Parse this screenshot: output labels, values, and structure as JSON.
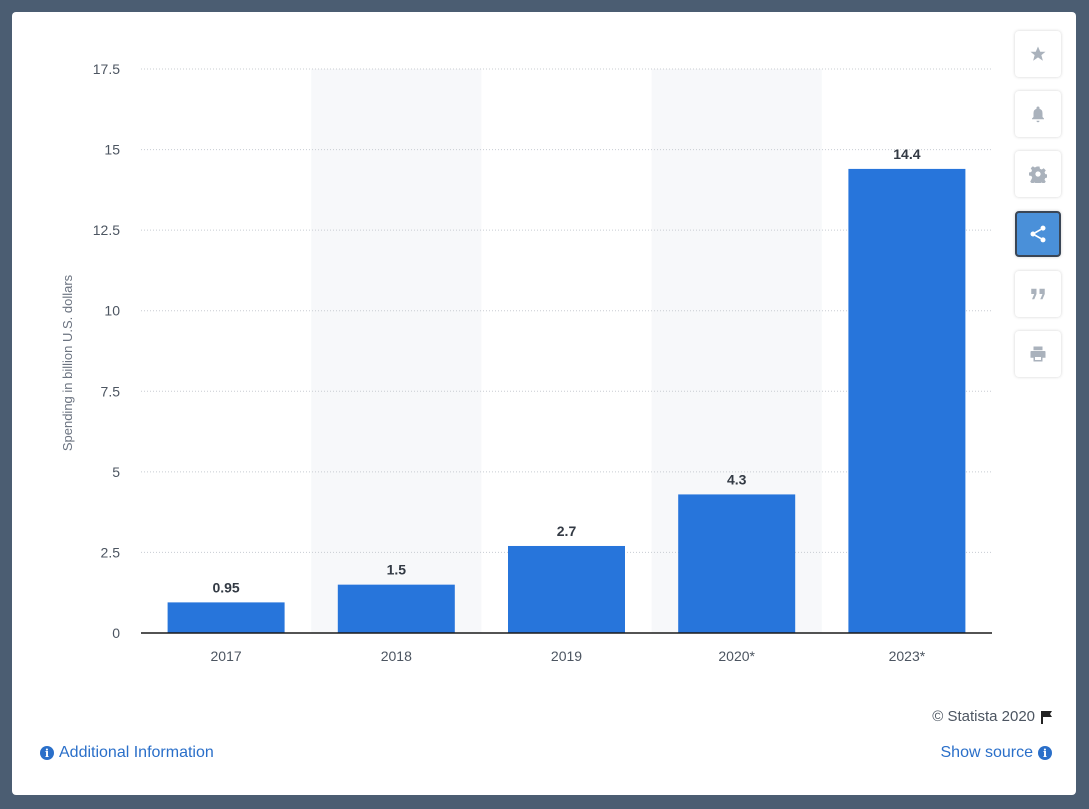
{
  "chart_data": {
    "type": "bar",
    "categories": [
      "2017",
      "2018",
      "2019",
      "2020*",
      "2023*"
    ],
    "values": [
      0.95,
      1.5,
      2.7,
      4.3,
      14.4
    ],
    "value_labels": [
      "0.95",
      "1.5",
      "2.7",
      "4.3",
      "14.4"
    ],
    "ylabel": "Spending in billion U.S. dollars",
    "xlabel": "",
    "ylim": [
      0,
      17.5
    ],
    "yticks": [
      0,
      2.5,
      5,
      7.5,
      10,
      12.5,
      15,
      17.5
    ],
    "ytick_labels": [
      "0",
      "2.5",
      "5",
      "7.5",
      "10",
      "12.5",
      "15",
      "17.5"
    ],
    "grid": true,
    "bar_color": "#2775db",
    "alt_band_color": "#f7f8fa"
  },
  "toolbar": {
    "buttons": [
      {
        "icon": "star-icon"
      },
      {
        "icon": "bell-icon"
      },
      {
        "icon": "gear-icon"
      },
      {
        "icon": "share-icon",
        "active": true
      },
      {
        "icon": "quote-icon"
      },
      {
        "icon": "print-icon"
      }
    ]
  },
  "footer": {
    "copyright": "© Statista 2020",
    "additional_info": "Additional Information",
    "show_source": "Show source",
    "info_glyph": "i"
  }
}
